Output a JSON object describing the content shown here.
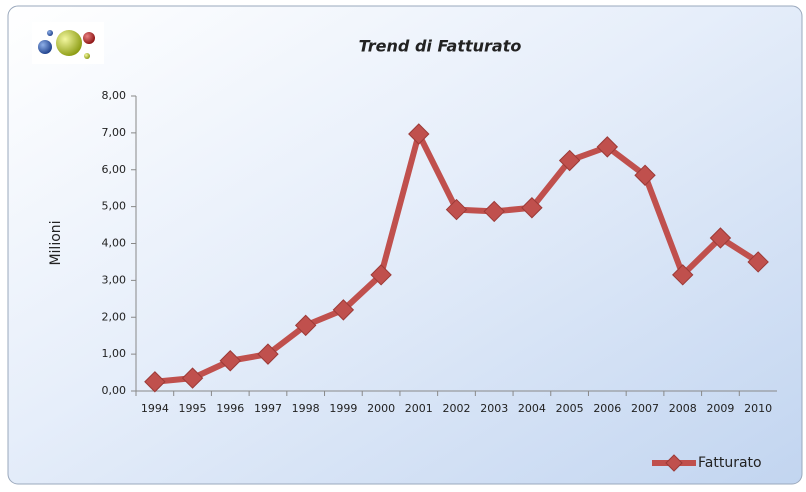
{
  "chart_data": {
    "type": "line",
    "title": "Trend di Fatturato",
    "y_label": "Milioni",
    "categories": [
      "1994",
      "1995",
      "1996",
      "1997",
      "1998",
      "1999",
      "2000",
      "2001",
      "2002",
      "2003",
      "2004",
      "2005",
      "2006",
      "2007",
      "2008",
      "2009",
      "2010"
    ],
    "series": [
      {
        "name": "Fatturato",
        "color": "#c0504d",
        "values": [
          0.25,
          0.35,
          0.82,
          1.0,
          1.78,
          2.2,
          3.15,
          6.97,
          4.92,
          4.87,
          4.97,
          6.25,
          6.62,
          5.85,
          3.15,
          4.15,
          3.5
        ]
      }
    ],
    "ylim": [
      0,
      8
    ],
    "yticks": [
      {
        "value": 0,
        "label": "0,00"
      },
      {
        "value": 1,
        "label": "1,00"
      },
      {
        "value": 2,
        "label": "2,00"
      },
      {
        "value": 3,
        "label": "3,00"
      },
      {
        "value": 4,
        "label": "4,00"
      },
      {
        "value": 5,
        "label": "5,00"
      },
      {
        "value": 6,
        "label": "6,00"
      },
      {
        "value": 7,
        "label": "7,00"
      },
      {
        "value": 8,
        "label": "8,00"
      }
    ],
    "grid": false,
    "legend": "bottom-right"
  }
}
